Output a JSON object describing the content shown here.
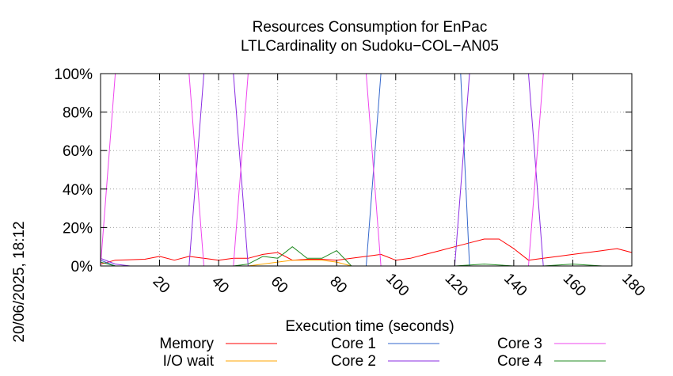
{
  "chart_data": {
    "type": "line",
    "title": "Resources Consumption for EnPac",
    "subtitle": "LTLCardinality on Sudoku−COL−AN05",
    "xlabel": "Execution time (seconds)",
    "ylabel": "",
    "side_label": "20/06/2025, 18:12",
    "xlim": [
      0,
      180
    ],
    "ylim": [
      0,
      100
    ],
    "xticks": [
      20,
      40,
      60,
      80,
      100,
      120,
      140,
      160,
      180
    ],
    "yticks": [
      0,
      20,
      40,
      60,
      80,
      100
    ],
    "ytick_labels": [
      "0%",
      "20%",
      "40%",
      "60%",
      "80%",
      "100%"
    ],
    "grid": true,
    "legend_position": "bottom",
    "series": [
      {
        "name": "Memory",
        "color": "#ff0000",
        "x": [
          0,
          5,
          15,
          20,
          25,
          30,
          35,
          40,
          45,
          50,
          55,
          60,
          65,
          70,
          75,
          80,
          85,
          90,
          95,
          100,
          105,
          110,
          115,
          120,
          125,
          130,
          135,
          140,
          145,
          150,
          155,
          160,
          165,
          170,
          175,
          180
        ],
        "y": [
          1,
          3,
          3.5,
          5,
          3,
          5,
          4,
          3,
          4,
          4,
          6,
          7,
          3,
          3.5,
          3.5,
          3,
          4,
          5,
          6,
          3,
          4,
          6,
          8,
          10,
          12,
          14,
          14,
          9,
          3,
          4,
          5,
          6,
          7,
          8,
          9,
          7
        ]
      },
      {
        "name": "I/O wait",
        "color": "#ffa500",
        "x": [
          0,
          5,
          10,
          20,
          30,
          40,
          50,
          60,
          65,
          70,
          75,
          80,
          85,
          90,
          100,
          120,
          140,
          160,
          180
        ],
        "y": [
          0,
          0,
          0,
          0,
          0,
          0,
          0,
          2,
          3,
          3,
          3,
          2,
          0,
          0,
          0,
          0,
          0,
          0,
          0
        ]
      },
      {
        "name": "Core 1",
        "color": "#3366cc",
        "x": [
          0,
          5,
          10,
          20,
          30,
          40,
          50,
          60,
          70,
          80,
          85,
          90,
          95,
          100,
          110,
          120,
          122,
          125,
          130,
          140,
          150,
          160,
          170,
          180
        ],
        "y": [
          3,
          0,
          0,
          0,
          0,
          0,
          0,
          0,
          0,
          0,
          0,
          0,
          100,
          100,
          100,
          100,
          100,
          0,
          0,
          0,
          0,
          0,
          0,
          0
        ]
      },
      {
        "name": "Core 2",
        "color": "#8a2be2",
        "x": [
          0,
          5,
          10,
          20,
          30,
          35,
          40,
          45,
          50,
          55,
          60,
          70,
          80,
          90,
          100,
          110,
          120,
          125,
          130,
          140,
          145,
          150,
          160,
          170,
          180
        ],
        "y": [
          4,
          1,
          0,
          0,
          0,
          100,
          100,
          100,
          0,
          0,
          0,
          0,
          0,
          0,
          0,
          0,
          0,
          100,
          100,
          100,
          100,
          0,
          0,
          0,
          0
        ]
      },
      {
        "name": "Core 3",
        "color": "#ee44ee",
        "x": [
          0,
          5,
          10,
          20,
          30,
          35,
          40,
          45,
          50,
          55,
          60,
          70,
          80,
          90,
          95,
          100,
          110,
          120,
          125,
          130,
          140,
          145,
          150,
          160,
          170,
          180
        ],
        "y": [
          0,
          100,
          100,
          100,
          100,
          0,
          0,
          0,
          100,
          100,
          100,
          100,
          100,
          100,
          0,
          0,
          0,
          0,
          0,
          0,
          0,
          0,
          100,
          100,
          100,
          100
        ]
      },
      {
        "name": "Core 4",
        "color": "#228b22",
        "x": [
          0,
          5,
          10,
          20,
          30,
          40,
          45,
          50,
          55,
          60,
          65,
          70,
          75,
          80,
          85,
          90,
          100,
          120,
          130,
          140,
          150,
          160,
          170,
          180
        ],
        "y": [
          2,
          0,
          0,
          0,
          0,
          0,
          0,
          1,
          5,
          4,
          10,
          4,
          4,
          8,
          0,
          0,
          0,
          0,
          1,
          0,
          0,
          1,
          0,
          0
        ]
      }
    ]
  }
}
